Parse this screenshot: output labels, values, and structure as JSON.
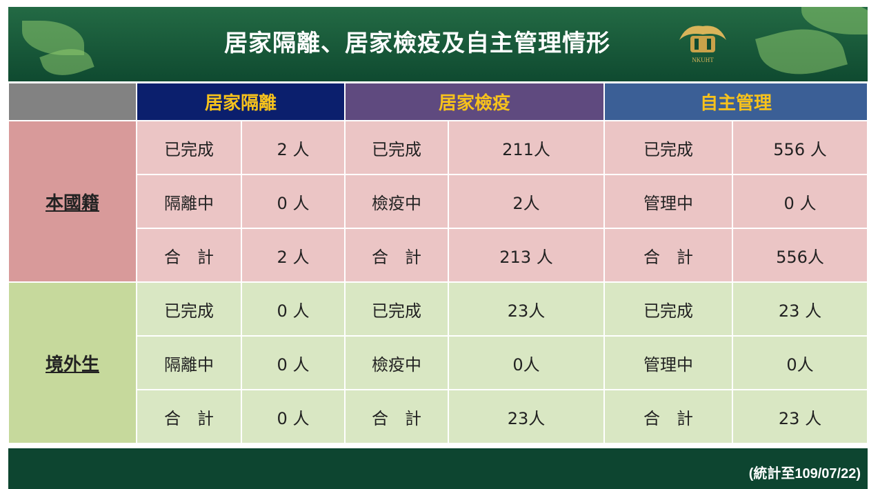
{
  "header": {
    "title": "居家隔離、居家檢疫及自主管理情形",
    "logo_text": "NKUHT"
  },
  "table": {
    "columns": [
      "居家隔離",
      "居家檢疫",
      "自主管理"
    ],
    "groups": [
      {
        "label": "本國籍",
        "rows": [
          [
            "已完成",
            "2 人",
            "已完成",
            "211人",
            "已完成",
            "556 人"
          ],
          [
            "隔離中",
            "0 人",
            "檢疫中",
            "2人",
            "管理中",
            "0 人"
          ],
          [
            "合　計",
            "2 人",
            "合　計",
            "213 人",
            "合　計",
            "556人"
          ]
        ]
      },
      {
        "label": "境外生",
        "rows": [
          [
            "已完成",
            "0 人",
            "已完成",
            "23人",
            "已完成",
            "23 人"
          ],
          [
            "隔離中",
            "0 人",
            "檢疫中",
            "0人",
            "管理中",
            "0人"
          ],
          [
            "合　計",
            "0 人",
            "合　計",
            "23人",
            "合　計",
            "23 人"
          ]
        ]
      }
    ]
  },
  "footer": {
    "note": "(統計至109/07/22)"
  }
}
